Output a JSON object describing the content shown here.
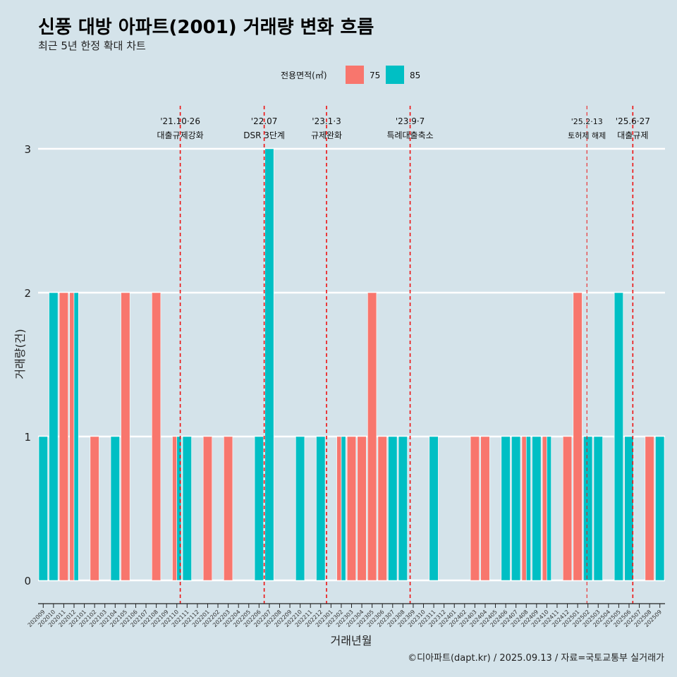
{
  "title": "신풍 대방 아파트(2001) 거래량 변화 흐름",
  "subtitle": "최근 5년 한정 확대 차트",
  "caption": "©디아파트(dapt.kr) / 2025.09.13 / 자료=국토교통부 실거래가",
  "colors": {
    "75": "#f8766d",
    "85": "#00bfc4",
    "background": "#d4e3ea",
    "vline": "#ee1111"
  },
  "chart_data": {
    "type": "bar",
    "xlabel": "거래년월",
    "ylabel": "거래량(건)",
    "ylim": [
      0,
      3
    ],
    "yticks": [
      0,
      1,
      2,
      3
    ],
    "legend_title": "전용면적(㎡)",
    "legend_position": "top",
    "grid": true,
    "categories": [
      "202009",
      "202010",
      "202011",
      "202012",
      "202101",
      "202102",
      "202103",
      "202104",
      "202105",
      "202106",
      "202107",
      "202108",
      "202109",
      "202110",
      "202111",
      "202112",
      "202201",
      "202202",
      "202203",
      "202204",
      "202205",
      "202206",
      "202207",
      "202208",
      "202209",
      "202210",
      "202211",
      "202212",
      "202301",
      "202302",
      "202303",
      "202304",
      "202305",
      "202306",
      "202307",
      "202308",
      "202309",
      "202310",
      "202311",
      "202312",
      "202401",
      "202402",
      "202403",
      "202404",
      "202405",
      "202406",
      "202407",
      "202408",
      "202409",
      "202410",
      "202411",
      "202412",
      "202501",
      "202502",
      "202503",
      "202504",
      "202505",
      "202506",
      "202507",
      "202508",
      "202509"
    ],
    "bars": [
      {
        "category": "202009",
        "series": "85",
        "value": 1
      },
      {
        "category": "202010",
        "series": "85",
        "value": 2
      },
      {
        "category": "202011",
        "series": "75",
        "value": 2
      },
      {
        "category": "202012",
        "series": "75",
        "value": 2
      },
      {
        "category": "202012",
        "series": "85",
        "value": 2
      },
      {
        "category": "202102",
        "series": "75",
        "value": 1
      },
      {
        "category": "202104",
        "series": "85",
        "value": 1
      },
      {
        "category": "202105",
        "series": "75",
        "value": 2
      },
      {
        "category": "202108",
        "series": "75",
        "value": 2
      },
      {
        "category": "202110",
        "series": "75",
        "value": 1
      },
      {
        "category": "202110",
        "series": "85",
        "value": 1
      },
      {
        "category": "202111",
        "series": "85",
        "value": 1
      },
      {
        "category": "202201",
        "series": "75",
        "value": 1
      },
      {
        "category": "202203",
        "series": "75",
        "value": 1
      },
      {
        "category": "202206",
        "series": "85",
        "value": 1
      },
      {
        "category": "202207",
        "series": "85",
        "value": 3
      },
      {
        "category": "202210",
        "series": "85",
        "value": 1
      },
      {
        "category": "202212",
        "series": "85",
        "value": 1
      },
      {
        "category": "202302",
        "series": "75",
        "value": 1
      },
      {
        "category": "202302",
        "series": "85",
        "value": 1
      },
      {
        "category": "202303",
        "series": "75",
        "value": 1
      },
      {
        "category": "202304",
        "series": "75",
        "value": 1
      },
      {
        "category": "202305",
        "series": "75",
        "value": 2
      },
      {
        "category": "202306",
        "series": "75",
        "value": 1
      },
      {
        "category": "202307",
        "series": "85",
        "value": 1
      },
      {
        "category": "202308",
        "series": "85",
        "value": 1
      },
      {
        "category": "202311",
        "series": "85",
        "value": 1
      },
      {
        "category": "202403",
        "series": "75",
        "value": 1
      },
      {
        "category": "202404",
        "series": "75",
        "value": 1
      },
      {
        "category": "202406",
        "series": "85",
        "value": 1
      },
      {
        "category": "202407",
        "series": "85",
        "value": 1
      },
      {
        "category": "202408",
        "series": "75",
        "value": 1
      },
      {
        "category": "202408",
        "series": "85",
        "value": 1
      },
      {
        "category": "202409",
        "series": "85",
        "value": 1
      },
      {
        "category": "202410",
        "series": "75",
        "value": 1
      },
      {
        "category": "202410",
        "series": "85",
        "value": 1
      },
      {
        "category": "202412",
        "series": "75",
        "value": 1
      },
      {
        "category": "202501",
        "series": "75",
        "value": 2
      },
      {
        "category": "202502",
        "series": "85",
        "value": 1
      },
      {
        "category": "202503",
        "series": "85",
        "value": 1
      },
      {
        "category": "202505",
        "series": "85",
        "value": 2
      },
      {
        "category": "202506",
        "series": "85",
        "value": 1
      },
      {
        "category": "202508",
        "series": "75",
        "value": 1
      },
      {
        "category": "202509",
        "series": "85",
        "value": 1
      }
    ],
    "series_names": [
      "75",
      "85"
    ],
    "annotations": [
      {
        "x": "2021-10-26",
        "line1": "'21.10·26",
        "line2": "대출규제강화",
        "small": false
      },
      {
        "x": "2022-07-01",
        "line1": "'22.07",
        "line2": "DSR 3단계",
        "small": false
      },
      {
        "x": "2023-01-03",
        "line1": "'23.1·3",
        "line2": "규제완화",
        "small": false
      },
      {
        "x": "2023-09-07",
        "line1": "'23.9·7",
        "line2": "특례대출축소",
        "small": false
      },
      {
        "x": "2025-02-13",
        "line1": "'25.2·13",
        "line2": "토허제 해제",
        "small": true
      },
      {
        "x": "2025-06-27",
        "line1": "'25.6·27",
        "line2": "대출규제",
        "small": false
      }
    ]
  }
}
